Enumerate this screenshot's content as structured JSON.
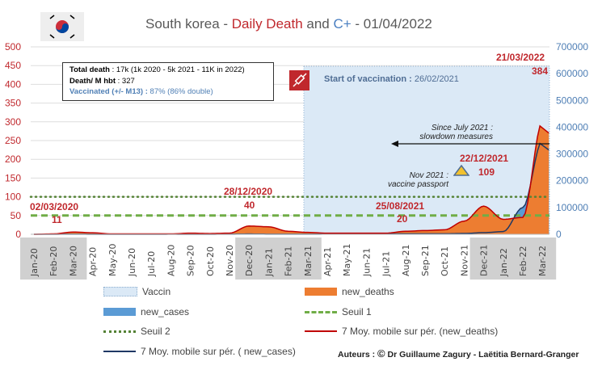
{
  "title": {
    "prefix": "South korea - ",
    "deaths": "Daily Death",
    "and": " and ",
    "cases": "C+",
    "date": " - 01/04/2022"
  },
  "infobox": {
    "line1_label": "Total death",
    "line1_value": " : 17k (1k 2020 - 5k 2021 - 11K in 2022)",
    "line2_label": "Death/ M hbt",
    "line2_value": " : 327",
    "line3_label": "Vaccinated (+/- M13) : ",
    "line3_value": "87% (86% double)"
  },
  "vaccination": {
    "label": "Start of vaccination : ",
    "date": "26/02/2021"
  },
  "annotations": {
    "a1_date": "02/03/2020",
    "a1_value": "11",
    "a2_date": "28/12/2020",
    "a2_value": "40",
    "a3_date": "25/08/2021",
    "a3_value": "20",
    "a4_date": "22/12/2021",
    "a4_value": "109",
    "a5_date": "21/03/2022",
    "a5_value": "384",
    "passport_line1": "Nov 2021 :",
    "passport_line2": "vaccine passport",
    "slowdown_line1": "Since July 2021 :",
    "slowdown_line2": "slowdown measures"
  },
  "legend": {
    "vaccin": "Vaccin",
    "new_deaths": "new_deaths",
    "new_cases": "new_cases",
    "seuil1": "Seuil 1",
    "seuil2": "Seuil 2",
    "ma_deaths": "7 Moy. mobile sur pér. (new_deaths)",
    "ma_cases": "7 Moy. mobile sur pér. ( new_cases)"
  },
  "authors": {
    "label": "Auteurs : ",
    "copyright": "©",
    "names": " Dr Guillaume Zagury - Laëtitia Bernard-Granger"
  },
  "colors": {
    "deaths": "#ed7d31",
    "cases": "#5b9bd5",
    "ma_deaths": "#c00000",
    "ma_cases": "#1f3864",
    "seuil": "#70ad47",
    "vaccin": "#dbe9f6"
  },
  "chart_data": {
    "type": "area",
    "title": "South korea - Daily Death and C+ - 01/04/2022",
    "categories": [
      "Jan-20",
      "Feb-20",
      "Mar-20",
      "Apr-20",
      "May-20",
      "Jun-20",
      "Jul-20",
      "Aug-20",
      "Sep-20",
      "Oct-20",
      "Nov-20",
      "Dec-20",
      "Jan-21",
      "Feb-21",
      "Mar-21",
      "Apr-21",
      "May-21",
      "Jun-21",
      "Jul-21",
      "Aug-21",
      "Sep-21",
      "Oct-21",
      "Nov-21",
      "Dec-21",
      "Jan-22",
      "Feb-22",
      "Mar-22"
    ],
    "y_left": {
      "ticks": [
        0,
        50,
        100,
        150,
        200,
        250,
        300,
        350,
        400,
        450,
        500
      ],
      "ylim": [
        0,
        500
      ]
    },
    "y_right": {
      "ticks": [
        0,
        100000,
        200000,
        300000,
        400000,
        500000,
        600000,
        700000
      ],
      "ylim": [
        0,
        700000
      ]
    },
    "seuil1": 50,
    "seuil2": 100,
    "series": [
      {
        "name": "new_deaths (7d avg)",
        "axis": "left",
        "values": [
          0,
          1,
          6,
          4,
          1,
          1,
          1,
          1,
          3,
          2,
          3,
          22,
          20,
          8,
          5,
          3,
          3,
          3,
          3,
          8,
          10,
          12,
          35,
          75,
          40,
          45,
          300
        ]
      },
      {
        "name": "new_cases (7d avg)",
        "axis": "right",
        "values": [
          0,
          100,
          500,
          100,
          50,
          50,
          50,
          200,
          150,
          100,
          400,
          1000,
          500,
          400,
          400,
          600,
          600,
          600,
          1500,
          1800,
          2000,
          1700,
          3000,
          6000,
          10000,
          100000,
          350000
        ]
      }
    ],
    "shaded_months": [
      [
        0,
        2
      ],
      [
        11,
        14
      ],
      [
        23,
        26
      ]
    ],
    "vaccination_start_index": 13.8
  }
}
